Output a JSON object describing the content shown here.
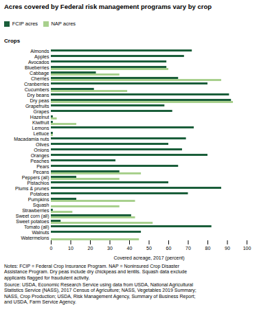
{
  "chart_data": {
    "type": "bar",
    "orientation": "horizontal",
    "title": "Acres covered by Federal risk management programs vary by crop",
    "xlabel": "Covered acreage, 2017 (percent)",
    "ylabel": "Crops",
    "categories": [
      "Almonds",
      "Apples",
      "Avocados",
      "Blueberries",
      "Cabbage",
      "Cherries",
      "Cranberries",
      "Cucumbers",
      "Dry beans",
      "Dry peas",
      "Grapefruits",
      "Grapes",
      "Hazelnut",
      "Kiwifruit",
      "Lemons",
      "Lettuce",
      "Macadamia nuts",
      "Olives",
      "Onions",
      "Oranges",
      "Peaches",
      "Pears",
      "Pecans",
      "Peppers (all)",
      "Pistachios",
      "Plums & prunes",
      "Potatoes",
      "Pumpkins",
      "Squash",
      "Strawberries",
      "Sweet corn (all)",
      "Sweet potatoes",
      "Tomato (all)",
      "Walnuts",
      "Watermelons"
    ],
    "series": [
      {
        "name": "FCIP acres",
        "color": "#1a5e3a",
        "values": [
          72,
          68,
          59,
          59,
          23,
          65,
          80,
          22,
          91,
          92,
          58,
          62,
          1,
          1,
          73,
          1,
          69,
          60,
          67,
          80,
          33,
          65,
          35,
          13,
          60,
          87,
          70,
          13,
          0,
          1,
          41,
          5,
          82,
          46,
          0
        ]
      },
      {
        "name": "NAP acres",
        "color": "#a8d08d",
        "values": [
          0,
          0,
          0,
          60,
          35,
          87,
          0,
          39,
          0,
          93,
          0,
          0,
          3,
          13,
          0,
          1,
          0,
          0,
          0,
          0,
          0,
          0,
          46,
          35,
          0,
          0,
          0,
          43,
          35,
          11,
          43,
          52,
          0,
          0,
          45
        ]
      }
    ],
    "xlim": [
      0,
      100
    ],
    "xticks": [
      0,
      10,
      20,
      30,
      40,
      50,
      60,
      70,
      80,
      90,
      100
    ],
    "grid": false,
    "legend": "top",
    "annotations": [
      "Notes: FCIP = Federal Crop Insurance Program. NAP = Noninsured Crop Disaster\nAssistance Program. Dry peas include dry chickpeas and lentils. Squash data exclude\napplicants flagged for fraudulent activity.",
      "Source: USDA, Economic Research Service using data from USDA, National Agricultural\nStatistics Service (NASS), 2017 Census of Agriculture; NASS, Vegetables 2019 Summary;\nNASS, Crop Production; USDA, Risk Management Agency, Summary of Business Report;\nand USDA, Farm Service Agency."
    ]
  }
}
